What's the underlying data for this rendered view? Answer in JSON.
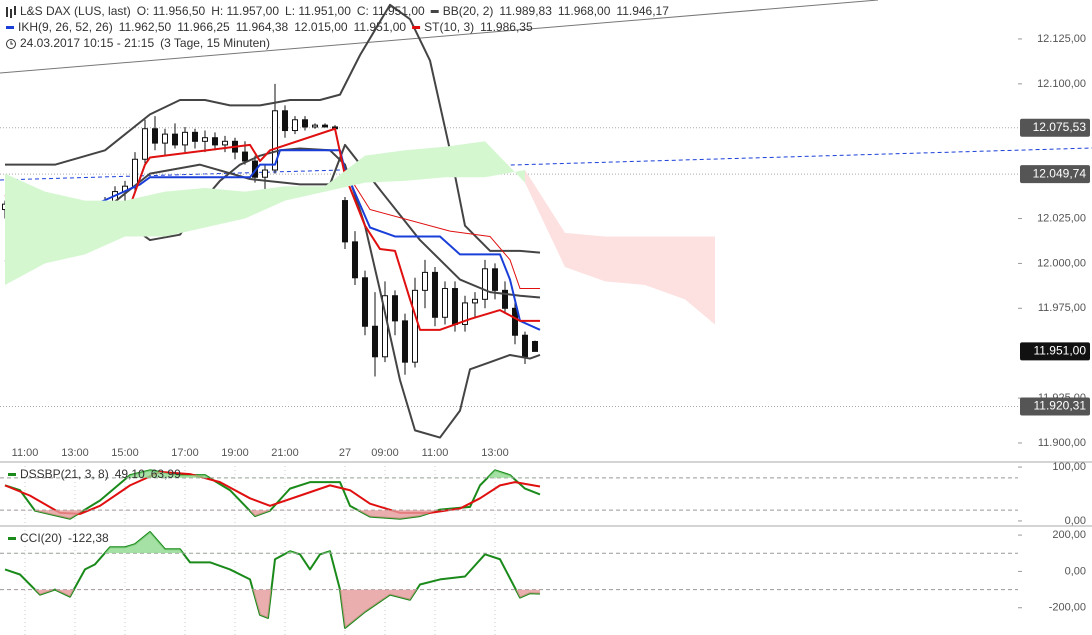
{
  "chart_data": [
    {
      "type": "candlestick",
      "header": [
        [
          {
            "text": "L&S DAX (LUS, last)",
            "color": "#222",
            "icon": "candles"
          },
          {
            "text": "O: 11.956,50",
            "color": "#222"
          },
          {
            "text": "H: 11.957,00",
            "color": "#222"
          },
          {
            "text": "L: 11.951,00",
            "color": "#222"
          },
          {
            "text": "C: 11.951,00",
            "color": "#222"
          },
          {
            "text": "BB(20, 2)",
            "color": "#444",
            "icon": "dash"
          },
          {
            "text": "11.989,83",
            "color": "#222"
          },
          {
            "text": "11.968,00",
            "color": "#222"
          },
          {
            "text": "11.946,17",
            "color": "#222"
          }
        ],
        [
          {
            "text": "IKH(9, 26, 52, 26)",
            "color": "#1a3fd9",
            "icon": "dash"
          },
          {
            "text": "11.962,50",
            "color": "#1a3fd9"
          },
          {
            "text": "11.966,25",
            "color": "#e01010"
          },
          {
            "text": "11.964,38",
            "color": "#1a8a1a"
          },
          {
            "text": "12.015,00",
            "color": "#1a8a1a"
          },
          {
            "text": "11.951,00",
            "color": "#b8a040"
          },
          {
            "text": "ST(10, 3)",
            "color": "#e01010",
            "icon": "dash"
          },
          {
            "text": "11.986,35",
            "color": "#e01010"
          }
        ],
        [
          {
            "text": "24.03.2017 10:15 - 21:15",
            "color": "#222",
            "icon": "clock"
          },
          {
            "text": "(3 Tage, 15 Minuten)",
            "color": "#222"
          }
        ]
      ],
      "categories": [
        null,
        null,
        "11:00",
        null,
        null,
        null,
        null,
        "13:00",
        null,
        null,
        null,
        null,
        "15:00",
        null,
        null,
        null,
        null,
        null,
        "17:00",
        null,
        null,
        null,
        null,
        "19:00",
        null,
        null,
        null,
        null,
        "21:00",
        null,
        null,
        null,
        null,
        null,
        "27",
        null,
        null,
        null,
        "09:00",
        null,
        null,
        null,
        null,
        "11:00",
        null,
        null,
        null,
        null,
        null,
        "13:00",
        null,
        null,
        null,
        null
      ],
      "open": [
        12030,
        12033,
        12030,
        12028,
        12022,
        12025,
        12018,
        12015,
        12022,
        12020,
        12030,
        12034,
        12040,
        12043,
        12058,
        12075,
        12067,
        12072,
        12066,
        12073,
        12068,
        12070,
        12066,
        12068,
        12062,
        12057,
        12048,
        12052,
        12085,
        12074,
        12080,
        12076,
        12077,
        12076,
        12035,
        12012,
        11992,
        11965,
        11948,
        11982,
        11968,
        11945,
        11985,
        11995,
        11970,
        11986,
        11966,
        11978,
        11980,
        11997,
        11985,
        11975,
        11960,
        11956.5
      ],
      "high": [
        12035,
        12037,
        12034,
        12033,
        12030,
        12030,
        12022,
        12024,
        12028,
        12033,
        12037,
        12043,
        12046,
        12062,
        12080,
        12082,
        12075,
        12078,
        12076,
        12075,
        12074,
        12073,
        12071,
        12070,
        12068,
        12060,
        12055,
        12100,
        12088,
        12082,
        12082,
        12078,
        12078,
        12077,
        12037,
        12018,
        11996,
        11984,
        11990,
        11985,
        11972,
        11992,
        12002,
        11998,
        11990,
        11990,
        11982,
        11984,
        12002,
        12000,
        11990,
        11980,
        11962,
        11957
      ],
      "low": [
        12025,
        12027,
        12022,
        12018,
        12012,
        12015,
        12012,
        12012,
        12018,
        12018,
        12027,
        12030,
        12034,
        12040,
        12055,
        12063,
        12060,
        12064,
        12062,
        12064,
        12062,
        12063,
        12062,
        12058,
        12055,
        12045,
        12032,
        12050,
        12070,
        12072,
        12074,
        12075,
        12076,
        12074,
        12008,
        11988,
        11960,
        11937,
        11945,
        11960,
        11938,
        11942,
        11975,
        11965,
        11966,
        11962,
        11962,
        11970,
        11975,
        11980,
        11972,
        11955,
        11944,
        11951
      ],
      "close": [
        12033,
        12030,
        12028,
        12022,
        12025,
        12018,
        12015,
        12022,
        12020,
        12030,
        12034,
        12040,
        12043,
        12058,
        12075,
        12067,
        12072,
        12066,
        12073,
        12068,
        12070,
        12066,
        12068,
        12062,
        12057,
        12048,
        12052,
        12085,
        12074,
        12080,
        12076,
        12077,
        12076,
        12075,
        12012,
        11992,
        11965,
        11948,
        11982,
        11968,
        11945,
        11985,
        11995,
        11970,
        11986,
        11966,
        11978,
        11980,
        11997,
        11985,
        11975,
        11960,
        11948,
        11951
      ],
      "series": [
        {
          "color": "#444",
          "width": 2,
          "x": [
            0,
            5,
            10,
            14.5,
            17.5,
            20,
            22.5,
            25.5,
            28.5,
            31.5,
            33.5,
            35.5,
            38.5,
            40.5,
            42.5,
            44.5,
            46,
            48.5,
            51.5,
            53.5
          ],
          "values": [
            12055,
            12055,
            12063,
            12083,
            12091,
            12091,
            12088,
            12088,
            12091,
            12091,
            12094,
            12116,
            12144,
            12136,
            12113,
            12063,
            12021,
            12007,
            12007,
            12006
          ]
        },
        {
          "color": "#444",
          "width": 2,
          "x": [
            0,
            5,
            10,
            14.5,
            19.5,
            24.5,
            29.5,
            32.5,
            34,
            37.5,
            41.5,
            45.5,
            48.5,
            51.5,
            53.5
          ],
          "values": [
            12030,
            12033,
            12030,
            12050,
            12055,
            12047,
            12044,
            12044,
            12066,
            12041,
            12013,
            11991,
            11984,
            11982,
            11981
          ]
        },
        {
          "color": "#444",
          "width": 2,
          "x": [
            0,
            5,
            10,
            12.5,
            14.5,
            17.5,
            19.5,
            21.5,
            23.5,
            25.5,
            27.5,
            29.5,
            32.5,
            34,
            36,
            37.5,
            39.5,
            41,
            43.5,
            45.5,
            46.5,
            48.5,
            50.5,
            52.5,
            53.5
          ],
          "values": [
            12001,
            12013,
            12013,
            12021,
            12013,
            12016,
            12033,
            12046,
            12055,
            12060,
            12063,
            12064,
            12063,
            12055,
            12021,
            11985,
            11935,
            11907,
            11903,
            11918,
            11941,
            11945,
            11949,
            11947,
            11949
          ]
        },
        {
          "color": "#1a3fd9",
          "width": 2,
          "x": [
            0,
            3.5,
            5.5,
            9.5,
            13.5,
            14.5,
            24.5,
            25.5,
            27,
            27.5,
            33.5,
            34,
            36.5,
            39,
            43.5,
            45.5,
            49.5,
            50.5,
            51.5,
            53.5
          ],
          "values": [
            12035,
            12030,
            12034,
            12034,
            12044,
            12048,
            12048,
            12055,
            12055,
            12063,
            12063,
            12052,
            12020,
            12015,
            12015,
            12005,
            12005,
            11991,
            11968,
            11963
          ]
        },
        {
          "color": "#e01010",
          "width": 1,
          "x": [
            34,
            36.5,
            44.5,
            48.5,
            50.5,
            51.5,
            53.5
          ],
          "values": [
            12052,
            12030,
            12018,
            12015,
            12002,
            11986,
            11986
          ]
        },
        {
          "color": "#e01010",
          "width": 2,
          "x": [
            0,
            3.5,
            7.5,
            9.5,
            12.5,
            14,
            14.5,
            24.5,
            25.5,
            26.5,
            33,
            34,
            36,
            37.5,
            39,
            40.5,
            41.5,
            43.5,
            46.5,
            49.5,
            51.5,
            53.5
          ],
          "values": [
            12038,
            12027,
            12021,
            12027,
            12032,
            12055,
            12059,
            12066,
            12057,
            12063,
            12075,
            12049,
            12021,
            12008,
            12007,
            11980,
            11963,
            11963,
            11969,
            11974,
            11968,
            11968
          ]
        }
      ],
      "cloud": {
        "x": [
          0,
          4,
          8,
          12,
          16,
          20,
          24,
          28,
          32,
          36,
          40,
          44,
          48,
          52,
          56,
          60,
          64,
          68,
          71
        ],
        "span_a": [
          12050,
          12040,
          12035,
          12035,
          12040,
          12042,
          12040,
          12043,
          12043,
          12060,
          12063,
          12065,
          12068,
          12045,
          11998,
          11990,
          11988,
          11980,
          11966
        ],
        "span_b": [
          11988,
          12000,
          12005,
          12015,
          12015,
          12020,
          12025,
          12035,
          12040,
          12045,
          12046,
          12048,
          12048,
          12052,
          12017,
          12015,
          12015,
          12015,
          12015
        ],
        "colors": [
          "#d4f7d0",
          "#fde0e0"
        ]
      },
      "markers": [
        {
          "value": 12075.53,
          "label": "12.075,53",
          "color": "#555",
          "line": true
        },
        {
          "value": 12049.74,
          "label": "12.049,74",
          "color": "#555",
          "line": true
        },
        {
          "value": 11951,
          "label": "11.951,00",
          "color": "#111",
          "line": false
        },
        {
          "value": 11920.31,
          "label": "11.920,31",
          "color": "#555",
          "line": true
        }
      ],
      "xlim": [
        -0.5,
        101.3
      ],
      "ylim": [
        11889.4,
        12146.7
      ],
      "yticks": [
        {
          "value": 12125,
          "label": "12.125,00"
        },
        {
          "value": 12100,
          "label": "12.100,00"
        },
        {
          "value": 12025,
          "label": "12.025,00"
        },
        {
          "value": 12000,
          "label": "12.000,00"
        },
        {
          "value": 11975,
          "label": "11.975,00"
        },
        {
          "value": 11925,
          "label": "11.925,00"
        },
        {
          "value": 11900,
          "label": "11.900,00"
        }
      ]
    },
    {
      "type": "line",
      "legend": [
        {
          "text": "DSSBP(21, 3, 8)",
          "color": "#1a8a1a",
          "icon": "dash"
        },
        {
          "text": "49,10",
          "color": "#1a8a1a"
        },
        {
          "text": "63,99",
          "color": "#e01010"
        }
      ],
      "series": [
        {
          "color": "#1a8a1a",
          "width": 2,
          "x": [
            0,
            1.5,
            3,
            6.5,
            9.5,
            12.5,
            14.5,
            17.5,
            20,
            22.5,
            25,
            26.5,
            28.5,
            30.5,
            33.5,
            34.5,
            36.5,
            39.5,
            41.5,
            43.5,
            46.5,
            47.5,
            49,
            50.5,
            52,
            53.5
          ],
          "values": [
            66,
            57,
            19,
            4,
            38,
            85,
            94,
            85,
            85,
            57,
            9,
            19,
            60,
            72,
            72,
            28,
            8,
            4,
            9,
            21,
            26,
            66,
            94,
            85,
            60,
            49.1
          ]
        },
        {
          "color": "#e01010",
          "width": 2,
          "x": [
            0,
            2.5,
            5.5,
            7.5,
            9.5,
            12.5,
            15.5,
            18.5,
            21.5,
            24.5,
            26.5,
            29.5,
            32.5,
            34.5,
            36.5,
            39.5,
            42.5,
            45.5,
            47.5,
            49.5,
            51,
            53.5
          ],
          "values": [
            66,
            47,
            15,
            13,
            28,
            66,
            91,
            87,
            72,
            42,
            28,
            47,
            66,
            57,
            32,
            15,
            15,
            23,
            42,
            66,
            72,
            63.99
          ]
        }
      ],
      "levels": [
        80,
        20
      ],
      "fill_colors": [
        "#8fd98f",
        "#e59a9a"
      ],
      "xlim": [
        -0.5,
        101.3
      ],
      "ylim": [
        -9.4,
        109.4
      ],
      "yticks": [
        {
          "value": 100,
          "label": "100,00"
        },
        {
          "value": 0,
          "label": "0,00"
        }
      ]
    },
    {
      "type": "line",
      "legend": [
        {
          "text": "CCI(20)",
          "color": "#1a8a1a",
          "icon": "dash"
        },
        {
          "text": "-122,38",
          "color": "#1a8a1a"
        }
      ],
      "series": [
        {
          "color": "#1a8a1a",
          "width": 2,
          "x": [
            0,
            1.5,
            3.5,
            5,
            6.5,
            8,
            9,
            10.5,
            12,
            13,
            14.5,
            16,
            17.5,
            18.5,
            20.5,
            22.5,
            24.5,
            25.5,
            26.3,
            27,
            28.5,
            29.5,
            30.5,
            31.5,
            32.5,
            33.5,
            34,
            36,
            38.5,
            40.5,
            41.5,
            43.5,
            46,
            48,
            49.5,
            51.5,
            52.5,
            53.5
          ],
          "values": [
            11,
            -17,
            -128,
            -100,
            -139,
            11,
            39,
            133,
            133,
            150,
            217,
            122,
            122,
            50,
            50,
            11,
            -44,
            -239,
            -256,
            67,
            111,
            94,
            11,
            94,
            111,
            -100,
            -311,
            -222,
            -128,
            -156,
            -72,
            -44,
            -28,
            94,
            67,
            -144,
            -120,
            -122.38
          ]
        }
      ],
      "levels": [
        100,
        -100
      ],
      "fill_colors": [
        "#8fd98f",
        "#e59a9a"
      ],
      "xlim": [
        -0.5,
        101.3
      ],
      "ylim": [
        -350,
        250
      ],
      "yticks": [
        {
          "value": 200,
          "label": "200,00"
        },
        {
          "value": 0,
          "label": "0,00"
        },
        {
          "value": -200,
          "label": "-200,00"
        }
      ]
    }
  ]
}
